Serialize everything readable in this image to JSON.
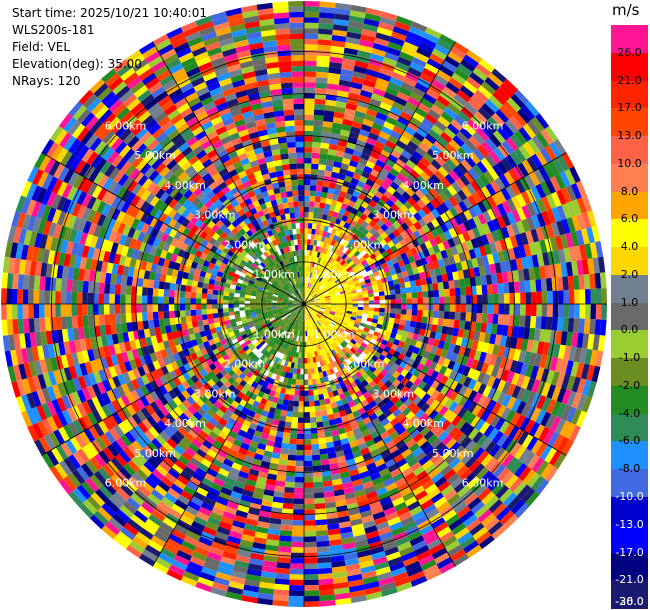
{
  "header": {
    "start_time": "Start time: 2025/10/21 10:40:01",
    "site": "WLS200s-181",
    "field": "Field: VEL",
    "elevation": "Elevation(deg): 35.00",
    "nrays": "NRays: 120"
  },
  "chart_data": {
    "type": "heatmap",
    "projection": "polar-ppi",
    "field": "VEL",
    "units": "m/s",
    "elevation_deg": 35.0,
    "n_rays": 120,
    "range_rings": [
      {
        "label": "1.00km",
        "value": 1
      },
      {
        "label": "2.00km",
        "value": 2
      },
      {
        "label": "3.00km",
        "value": 3
      },
      {
        "label": "4.00km",
        "value": 4
      },
      {
        "label": "5.00km",
        "value": 5
      },
      {
        "label": "6.00km",
        "value": 6
      }
    ],
    "max_range_km": 7.2,
    "colorbar": {
      "unit": "m/s",
      "ticks": [
        "26.0",
        "21.0",
        "17.0",
        "13.0",
        "10.0",
        "8.0",
        "6.0",
        "4.0",
        "2.0",
        "1.0",
        "0.0",
        "-1.0",
        "-2.0",
        "-4.0",
        "-6.0",
        "-8.0",
        "-10.0",
        "-13.0",
        "-17.0",
        "-21.0",
        "-26.0",
        "-30.0"
      ],
      "colors": [
        "#ff1493",
        "#ff0000",
        "#ff2400",
        "#ff4500",
        "#ff6347",
        "#ff7f50",
        "#ffa500",
        "#ffff00",
        "#ffd700",
        "#708090",
        "#696969",
        "#9acd32",
        "#6b8e23",
        "#228b22",
        "#2e8b57",
        "#1e90ff",
        "#4169e1",
        "#0000cd",
        "#0000ff",
        "#000080",
        "#191970"
      ]
    },
    "near_range_pattern": "positive (yellow/orange) on east half, negative (green) on west half within ~2 km; noise beyond"
  }
}
